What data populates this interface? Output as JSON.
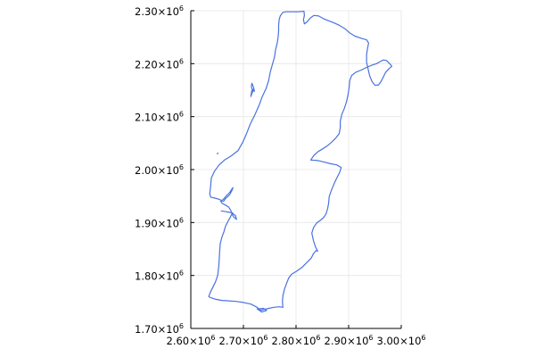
{
  "chart_data": {
    "type": "map",
    "title": "",
    "xlabel": "",
    "ylabel": "",
    "xlim": [
      2600000,
      3000000
    ],
    "ylim": [
      1700000,
      2300000
    ],
    "grid": true,
    "x_ticks": [
      {
        "base": "2.60×10",
        "exp": "6"
      },
      {
        "base": "2.70×10",
        "exp": "6"
      },
      {
        "base": "2.80×10",
        "exp": "6"
      },
      {
        "base": "2.90×10",
        "exp": "6"
      },
      {
        "base": "3.00×10",
        "exp": "6"
      }
    ],
    "y_ticks": [
      {
        "base": "1.70×10",
        "exp": "6"
      },
      {
        "base": "1.80×10",
        "exp": "6"
      },
      {
        "base": "1.90×10",
        "exp": "6"
      },
      {
        "base": "2.00×10",
        "exp": "6"
      },
      {
        "base": "2.10×10",
        "exp": "6"
      },
      {
        "base": "2.20×10",
        "exp": "6"
      },
      {
        "base": "2.30×10",
        "exp": "6"
      }
    ],
    "series_color": "#4a72e0",
    "outline": [
      [
        2775000,
        2297000
      ],
      [
        2772000,
        2293000
      ],
      [
        2770000,
        2290000
      ],
      [
        2768000,
        2283000
      ],
      [
        2767000,
        2273000
      ],
      [
        2767000,
        2262000
      ],
      [
        2766000,
        2250000
      ],
      [
        2764000,
        2238000
      ],
      [
        2761000,
        2226000
      ],
      [
        2759000,
        2212000
      ],
      [
        2755000,
        2198000
      ],
      [
        2751000,
        2184000
      ],
      [
        2748000,
        2168000
      ],
      [
        2743000,
        2153000
      ],
      [
        2736000,
        2138000
      ],
      [
        2730000,
        2122000
      ],
      [
        2722000,
        2104000
      ],
      [
        2713000,
        2086000
      ],
      [
        2706000,
        2068000
      ],
      [
        2699000,
        2052000
      ],
      [
        2690000,
        2036000
      ],
      [
        2677000,
        2026000
      ],
      [
        2664000,
        2018000
      ],
      [
        2653000,
        2008000
      ],
      [
        2645000,
        1997000
      ],
      [
        2639000,
        1984000
      ],
      [
        2638000,
        1972000
      ],
      [
        2637000,
        1962000
      ],
      [
        2636000,
        1954000
      ],
      [
        2638000,
        1948000
      ],
      [
        2646000,
        1946000
      ],
      [
        2653000,
        1944000
      ],
      [
        2662000,
        1940000
      ],
      [
        2666000,
        1945000
      ],
      [
        2674000,
        1953000
      ],
      [
        2679000,
        1962000
      ],
      [
        2680000,
        1966000
      ],
      [
        2674000,
        1957000
      ],
      [
        2667000,
        1950000
      ],
      [
        2662000,
        1944000
      ],
      [
        2657000,
        1940000
      ],
      [
        2660000,
        1936000
      ],
      [
        2666000,
        1933000
      ],
      [
        2672000,
        1929000
      ],
      [
        2676000,
        1923000
      ],
      [
        2678000,
        1918000
      ],
      [
        2685000,
        1913000
      ],
      [
        2687000,
        1906000
      ],
      [
        2682000,
        1910000
      ],
      [
        2678000,
        1916000
      ],
      [
        2675000,
        1910000
      ],
      [
        2671000,
        1903000
      ],
      [
        2666000,
        1893000
      ],
      [
        2663000,
        1883000
      ],
      [
        2659000,
        1872000
      ],
      [
        2656000,
        1860000
      ],
      [
        2655000,
        1847000
      ],
      [
        2654000,
        1832000
      ],
      [
        2653000,
        1816000
      ],
      [
        2651000,
        1800000
      ],
      [
        2647000,
        1788000
      ],
      [
        2642000,
        1778000
      ],
      [
        2637000,
        1768000
      ],
      [
        2634000,
        1760000
      ],
      [
        2638000,
        1758000
      ],
      [
        2648000,
        1755000
      ],
      [
        2659000,
        1753000
      ],
      [
        2672000,
        1752000
      ],
      [
        2686000,
        1751000
      ],
      [
        2700000,
        1749000
      ],
      [
        2714000,
        1746000
      ],
      [
        2726000,
        1740000
      ],
      [
        2733000,
        1734000
      ],
      [
        2740000,
        1736000
      ],
      [
        2748000,
        1738000
      ],
      [
        2758000,
        1740000
      ],
      [
        2768000,
        1741000
      ],
      [
        2775000,
        1740000
      ],
      [
        2774000,
        1750000
      ],
      [
        2775000,
        1762000
      ],
      [
        2778000,
        1774000
      ],
      [
        2782000,
        1785000
      ],
      [
        2786000,
        1795000
      ],
      [
        2791000,
        1802000
      ],
      [
        2801000,
        1808000
      ],
      [
        2811000,
        1815000
      ],
      [
        2820000,
        1824000
      ],
      [
        2829000,
        1833000
      ],
      [
        2833000,
        1841000
      ],
      [
        2838000,
        1847000
      ],
      [
        2841000,
        1846000
      ],
      [
        2837000,
        1854000
      ],
      [
        2833000,
        1866000
      ],
      [
        2830000,
        1880000
      ],
      [
        2833000,
        1890000
      ],
      [
        2839000,
        1899000
      ],
      [
        2846000,
        1904000
      ],
      [
        2852000,
        1909000
      ],
      [
        2857000,
        1916000
      ],
      [
        2860000,
        1926000
      ],
      [
        2862000,
        1937000
      ],
      [
        2863000,
        1949000
      ],
      [
        2867000,
        1960000
      ],
      [
        2871000,
        1970000
      ],
      [
        2874000,
        1977000
      ],
      [
        2878000,
        1985000
      ],
      [
        2883000,
        1995000
      ],
      [
        2886000,
        2004000
      ],
      [
        2877000,
        2009000
      ],
      [
        2866000,
        2011000
      ],
      [
        2854000,
        2014000
      ],
      [
        2842000,
        2017000
      ],
      [
        2828000,
        2018000
      ],
      [
        2834000,
        2027000
      ],
      [
        2842000,
        2034000
      ],
      [
        2852000,
        2040000
      ],
      [
        2861000,
        2046000
      ],
      [
        2868000,
        2052000
      ],
      [
        2876000,
        2060000
      ],
      [
        2882000,
        2068000
      ],
      [
        2884000,
        2079000
      ],
      [
        2884000,
        2091000
      ],
      [
        2887000,
        2104000
      ],
      [
        2892000,
        2116000
      ],
      [
        2896000,
        2128000
      ],
      [
        2899000,
        2142000
      ],
      [
        2901000,
        2156000
      ],
      [
        2902000,
        2168000
      ],
      [
        2906000,
        2178000
      ],
      [
        2914000,
        2184000
      ],
      [
        2924000,
        2188000
      ],
      [
        2934000,
        2193000
      ],
      [
        2944000,
        2197000
      ],
      [
        2953000,
        2200000
      ],
      [
        2960000,
        2204000
      ],
      [
        2966000,
        2207000
      ],
      [
        2972000,
        2206000
      ],
      [
        2978000,
        2200000
      ],
      [
        2982000,
        2195000
      ],
      [
        2976000,
        2190000
      ],
      [
        2970000,
        2183000
      ],
      [
        2966000,
        2175000
      ],
      [
        2962000,
        2167000
      ],
      [
        2957000,
        2160000
      ],
      [
        2950000,
        2159000
      ],
      [
        2944000,
        2167000
      ],
      [
        2940000,
        2177000
      ],
      [
        2937000,
        2190000
      ],
      [
        2934000,
        2203000
      ],
      [
        2934000,
        2217000
      ],
      [
        2936000,
        2229000
      ],
      [
        2938000,
        2239000
      ],
      [
        2934000,
        2245000
      ],
      [
        2924000,
        2248000
      ],
      [
        2912000,
        2252000
      ],
      [
        2902000,
        2258000
      ],
      [
        2893000,
        2266000
      ],
      [
        2883000,
        2272000
      ],
      [
        2872000,
        2277000
      ],
      [
        2862000,
        2281000
      ],
      [
        2852000,
        2285000
      ],
      [
        2843000,
        2290000
      ],
      [
        2834000,
        2291000
      ],
      [
        2827000,
        2286000
      ],
      [
        2821000,
        2279000
      ],
      [
        2816000,
        2275000
      ],
      [
        2814000,
        2283000
      ],
      [
        2816000,
        2291000
      ],
      [
        2815000,
        2299000
      ],
      [
        2804000,
        2298000
      ],
      [
        2792000,
        2298000
      ],
      [
        2781000,
        2298000
      ],
      [
        2775000,
        2297000
      ]
    ],
    "islets": [
      [
        [
          2716000,
          2163000
        ],
        [
          2719000,
          2156000
        ],
        [
          2721000,
          2148000
        ],
        [
          2718000,
          2148000
        ],
        [
          2715000,
          2156000
        ],
        [
          2716000,
          2163000
        ]
      ],
      [
        [
          2714000,
          2138000
        ],
        [
          2717000,
          2146000
        ],
        [
          2719000,
          2152000
        ],
        [
          2716000,
          2149000
        ],
        [
          2714000,
          2138000
        ]
      ],
      [
        [
          2650000,
          2030000
        ],
        [
          2652000,
          2031000
        ]
      ],
      [
        [
          2658000,
          1922000
        ],
        [
          2670000,
          1920000
        ],
        [
          2680000,
          1918000
        ]
      ],
      [
        [
          2726000,
          1737000
        ],
        [
          2735000,
          1731000
        ],
        [
          2744000,
          1734000
        ],
        [
          2738000,
          1738000
        ],
        [
          2730000,
          1737000
        ]
      ]
    ]
  }
}
